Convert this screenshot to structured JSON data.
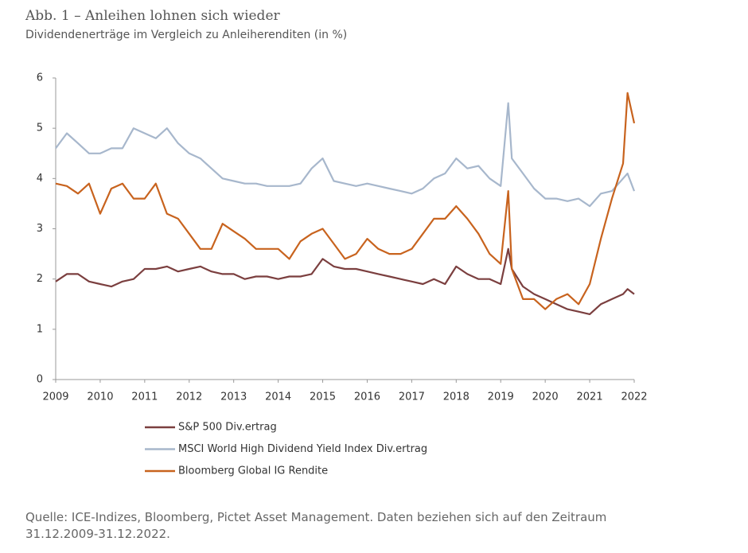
{
  "chart_data": {
    "type": "line",
    "title": "Abb. 1 – Anleihen lohnen sich wieder",
    "subtitle": "Dividendenerträge im Vergleich zu Anleiherenditen (in %)",
    "source": "Quelle: ICE-Indizes, Bloomberg, Pictet Asset Management. Daten beziehen sich auf den Zeitraum 31.12.2009-31.12.2022.",
    "x": [
      2009,
      2009.25,
      2009.5,
      2009.75,
      2010,
      2010.25,
      2010.5,
      2010.75,
      2011,
      2011.25,
      2011.5,
      2011.75,
      2012,
      2012.25,
      2012.5,
      2012.75,
      2013,
      2013.25,
      2013.5,
      2013.75,
      2014,
      2014.25,
      2014.5,
      2014.75,
      2015,
      2015.25,
      2015.5,
      2015.75,
      2016,
      2016.25,
      2016.5,
      2016.75,
      2017,
      2017.25,
      2017.5,
      2017.75,
      2018,
      2018.25,
      2018.5,
      2018.75,
      2019,
      2019.17,
      2019.25,
      2019.5,
      2019.75,
      2020,
      2020.25,
      2020.5,
      2020.75,
      2021,
      2021.25,
      2021.5,
      2021.75,
      2021.85,
      2022
    ],
    "series": [
      {
        "name": "S&P 500 Div.ertrag",
        "color": "#7b3f3f",
        "values": [
          1.95,
          2.1,
          2.1,
          1.95,
          1.9,
          1.85,
          1.95,
          2.0,
          2.2,
          2.2,
          2.25,
          2.15,
          2.2,
          2.25,
          2.15,
          2.1,
          2.1,
          2.0,
          2.05,
          2.05,
          2.0,
          2.05,
          2.05,
          2.1,
          2.4,
          2.25,
          2.2,
          2.2,
          2.15,
          2.1,
          2.05,
          2.0,
          1.95,
          1.9,
          2.0,
          1.9,
          2.25,
          2.1,
          2.0,
          2.0,
          1.9,
          2.6,
          2.2,
          1.85,
          1.7,
          1.6,
          1.5,
          1.4,
          1.35,
          1.3,
          1.5,
          1.6,
          1.7,
          1.8,
          1.7
        ]
      },
      {
        "name": "MSCI World High Dividend Yield Index Div.ertrag",
        "color": "#a7b7cc",
        "values": [
          4.6,
          4.9,
          4.7,
          4.5,
          4.5,
          4.6,
          4.6,
          5.0,
          4.9,
          4.8,
          5.0,
          4.7,
          4.5,
          4.4,
          4.2,
          4.0,
          3.95,
          3.9,
          3.9,
          3.85,
          3.85,
          3.85,
          3.9,
          4.2,
          4.4,
          3.95,
          3.9,
          3.85,
          3.9,
          3.85,
          3.8,
          3.75,
          3.7,
          3.8,
          4.0,
          4.1,
          4.4,
          4.2,
          4.25,
          4.0,
          3.85,
          5.5,
          4.4,
          4.1,
          3.8,
          3.6,
          3.6,
          3.55,
          3.6,
          3.45,
          3.7,
          3.75,
          4.0,
          4.1,
          3.75
        ]
      },
      {
        "name": "Bloomberg Global IG Rendite",
        "color": "#c8631e",
        "values": [
          3.9,
          3.85,
          3.7,
          3.9,
          3.3,
          3.8,
          3.9,
          3.6,
          3.6,
          3.9,
          3.3,
          3.2,
          2.9,
          2.6,
          2.6,
          3.1,
          2.95,
          2.8,
          2.6,
          2.6,
          2.6,
          2.4,
          2.75,
          2.9,
          3.0,
          2.7,
          2.4,
          2.5,
          2.8,
          2.6,
          2.5,
          2.5,
          2.6,
          2.9,
          3.2,
          3.2,
          3.45,
          3.2,
          2.9,
          2.5,
          2.3,
          3.75,
          2.2,
          1.6,
          1.6,
          1.4,
          1.6,
          1.7,
          1.5,
          1.9,
          2.8,
          3.6,
          4.3,
          5.7,
          5.1
        ]
      }
    ],
    "xlim": [
      2009,
      2022
    ],
    "xticks": [
      2009,
      2010,
      2011,
      2012,
      2013,
      2014,
      2015,
      2016,
      2017,
      2018,
      2019,
      2020,
      2021,
      2022
    ],
    "ylim": [
      0,
      6
    ],
    "yticks": [
      0,
      1,
      2,
      3,
      4,
      5,
      6
    ],
    "grid": false
  }
}
